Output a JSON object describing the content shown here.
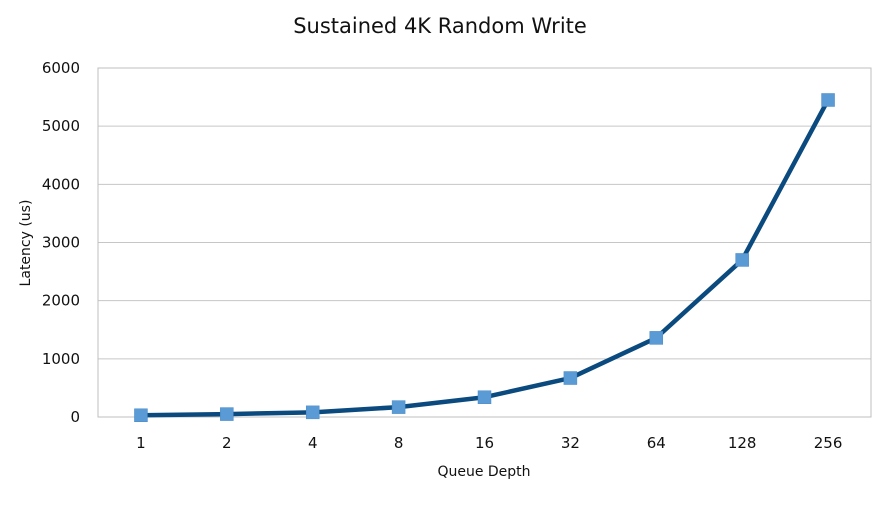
{
  "chart_data": {
    "type": "line",
    "title": "Sustained 4K Random Write",
    "xlabel": "Queue Depth",
    "ylabel": "Latency (us)",
    "categories": [
      "1",
      "2",
      "4",
      "8",
      "16",
      "32",
      "64",
      "128",
      "256"
    ],
    "series": [
      {
        "values": [
          30,
          50,
          80,
          170,
          340,
          670,
          1360,
          2700,
          5450
        ],
        "color": "#0b4a7e",
        "marker_color": "#5b9bd5",
        "marker": "square"
      }
    ],
    "ylim": [
      0,
      6000
    ],
    "yticks": [
      0,
      1000,
      2000,
      3000,
      4000,
      5000,
      6000
    ],
    "grid": true,
    "legend": "none"
  }
}
